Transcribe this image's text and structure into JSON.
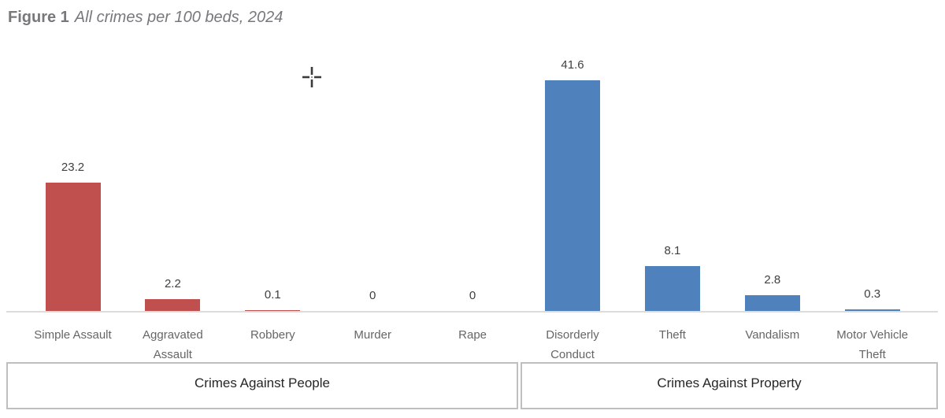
{
  "figure_title": {
    "prefix": "Figure 1",
    "text": "All crimes per 100 beds, 2024"
  },
  "chart_data": {
    "type": "bar",
    "title": "Figure 1 All crimes per 100 beds, 2024",
    "categories": [
      "Simple Assault",
      "Aggravated Assault",
      "Robbery",
      "Murder",
      "Rape",
      "Disorderly Conduct",
      "Theft",
      "Vandalism",
      "Motor Vehicle Theft"
    ],
    "values": [
      23.2,
      2.2,
      0.1,
      0,
      0,
      41.6,
      8.1,
      2.8,
      0.3
    ],
    "data_labels": [
      "23.2",
      "2.2",
      "0.1",
      "0",
      "0",
      "41.6",
      "8.1",
      "2.8",
      "0.3"
    ],
    "bar_colors": [
      "#c0504d",
      "#c0504d",
      "#c0504d",
      "#c0504d",
      "#c0504d",
      "#4f81bd",
      "#4f81bd",
      "#4f81bd",
      "#4f81bd"
    ],
    "groups": [
      {
        "label": "Crimes Against People",
        "category_range": [
          0,
          4
        ]
      },
      {
        "label": "Crimes Against Property",
        "category_range": [
          5,
          8
        ]
      }
    ],
    "xlabel": "",
    "ylabel": "",
    "ylim": [
      0,
      44
    ],
    "gridlines": false,
    "legend": "none",
    "value_axis_visible": false,
    "colors": {
      "crimes_against_people": "#c0504d",
      "crimes_against_property": "#4f81bd",
      "axis_line": "#dcdcdc",
      "group_box_border": "#bfbfbf",
      "category_label": "#666666",
      "data_label": "#404040",
      "group_label": "#262626",
      "title": "#77787b"
    }
  },
  "icons": {
    "cursor": "precision-crosshair-cursor"
  }
}
